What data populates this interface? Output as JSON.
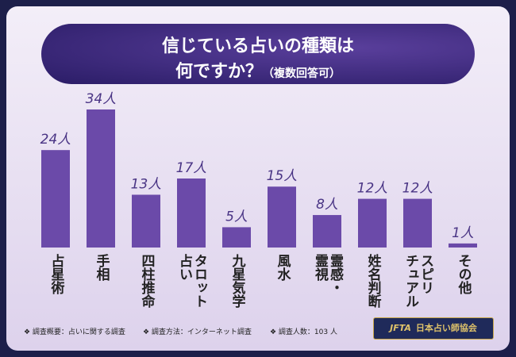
{
  "chart_data": {
    "type": "bar",
    "title": "信じている占いの種類は",
    "subtitle": "何ですか？",
    "note": "（複数回答可）",
    "categories": [
      "占星術",
      "手相",
      "四柱推命",
      "タロット\n占い",
      "九星気学",
      "風水",
      "霊感・\n霊視",
      "姓名判断",
      "スピリ\nチュアル",
      "その他"
    ],
    "values": [
      24,
      34,
      13,
      17,
      5,
      15,
      8,
      12,
      12,
      1
    ],
    "value_labels": [
      "24人",
      "34人",
      "13人",
      "17人",
      "5人",
      "15人",
      "8人",
      "12人",
      "12人",
      "1人"
    ],
    "color": "#6b4aa9"
  },
  "footer": {
    "notes": [
      "❖ 調査概要：占いに関する調査",
      "❖ 調査方法：インターネット調査",
      "❖ 調査人数：103 人"
    ],
    "logo": {
      "mark": "JFTA",
      "name": "日本占い師協会"
    }
  }
}
